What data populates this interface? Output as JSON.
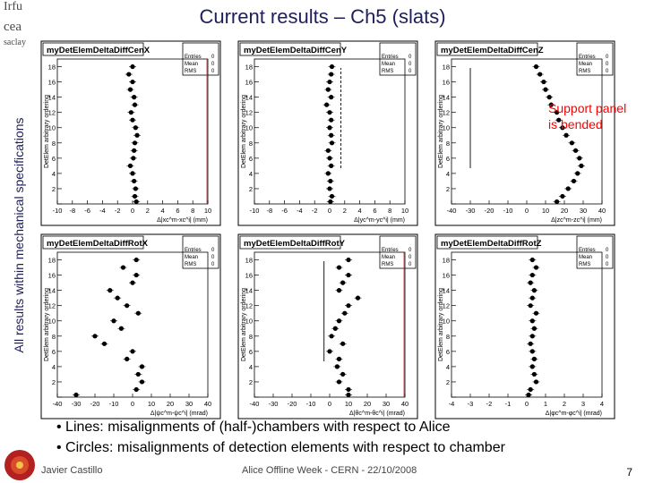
{
  "title": "Current results – Ch5 (slats)",
  "side_label": "All results within mechanical specifications",
  "logos": {
    "irfu": "Irfu",
    "cea": "cea",
    "saclay": "saclay"
  },
  "annotation": {
    "line1": "Support panel",
    "line2": "is bended"
  },
  "bullets": [
    "• Lines: misalignments of (half-)chambers with respect to Alice",
    "• Circles: misalignments of detection elements with respect to chamber"
  ],
  "footer": {
    "author": "Javier Castillo",
    "event": "Alice Offline Week - CERN - 22/10/2008",
    "page": "7"
  },
  "colors": {
    "title": "#1f1f5a",
    "annotation": "#ff0000",
    "marker": "#000000"
  },
  "chart_data": [
    {
      "type": "scatter",
      "title": "myDetElemDeltaDiffCenX",
      "xlabel": "Δ|xc^m-xc^i| (mm)",
      "ylabel": "DetElem arbitrary ordering",
      "xlim": [
        -10,
        10
      ],
      "ylim": [
        0,
        19
      ],
      "xticks": [
        -10,
        -8,
        -6,
        -4,
        -2,
        0,
        2,
        4,
        6,
        8,
        10
      ],
      "stats": {
        "entries": "0",
        "mean": "0",
        "rms": "0"
      },
      "points": [
        [
          0,
          18
        ],
        [
          -0.5,
          17
        ],
        [
          0,
          16
        ],
        [
          -0.3,
          15
        ],
        [
          0.2,
          14
        ],
        [
          0.3,
          13
        ],
        [
          -0.2,
          12
        ],
        [
          0,
          11
        ],
        [
          0.4,
          10
        ],
        [
          0.6,
          9
        ],
        [
          0.3,
          8
        ],
        [
          0.2,
          7
        ],
        [
          0.1,
          6
        ],
        [
          -0.3,
          5
        ],
        [
          0,
          4
        ],
        [
          0.2,
          3
        ],
        [
          0.4,
          2
        ],
        [
          0.3,
          1
        ],
        [
          0.5,
          0.3
        ]
      ]
    },
    {
      "type": "scatter",
      "title": "myDetElemDeltaDiffCenY",
      "xlabel": "Δ|yc^m-yc^i| (mm)",
      "ylabel": "DetElem arbitrary ordering",
      "xlim": [
        -10,
        10
      ],
      "ylim": [
        0,
        19
      ],
      "xticks": [
        -10,
        -8,
        -6,
        -4,
        -2,
        0,
        2,
        4,
        6,
        8,
        10
      ],
      "stats": {
        "entries": "0",
        "mean": "0",
        "rms": "0"
      },
      "points": [
        [
          0.3,
          18
        ],
        [
          0.2,
          17
        ],
        [
          0,
          16
        ],
        [
          -0.2,
          15
        ],
        [
          0.2,
          14
        ],
        [
          -0.4,
          13
        ],
        [
          0,
          12
        ],
        [
          0.2,
          11
        ],
        [
          0,
          10
        ],
        [
          0.2,
          9
        ],
        [
          0.3,
          8
        ],
        [
          -0.2,
          7
        ],
        [
          0,
          6
        ],
        [
          0.2,
          5
        ],
        [
          -0.2,
          4
        ],
        [
          0.1,
          3
        ],
        [
          0,
          2
        ],
        [
          0.3,
          1
        ],
        [
          0.1,
          0.3
        ]
      ]
    },
    {
      "type": "scatter",
      "title": "myDetElemDeltaDiffCenZ",
      "xlabel": "Δ|zc^m-zc^i| (mm)",
      "ylabel": "DetElem arbitrary ordering",
      "xlim": [
        -40,
        40
      ],
      "ylim": [
        0,
        19
      ],
      "xticks": [
        -40,
        -30,
        -20,
        -10,
        0,
        10,
        20,
        30,
        40
      ],
      "stats": {
        "entries": "0",
        "mean": "0",
        "rms": "0"
      },
      "points": [
        [
          5,
          18
        ],
        [
          7,
          17
        ],
        [
          9,
          16
        ],
        [
          10,
          15
        ],
        [
          12,
          14
        ],
        [
          13,
          13
        ],
        [
          16,
          12
        ],
        [
          17,
          11
        ],
        [
          19,
          10
        ],
        [
          21,
          9
        ],
        [
          24,
          8
        ],
        [
          26,
          7
        ],
        [
          28,
          6
        ],
        [
          29,
          5
        ],
        [
          27,
          4
        ],
        [
          25,
          3
        ],
        [
          22,
          2
        ],
        [
          19,
          1
        ],
        [
          16,
          0.3
        ]
      ]
    },
    {
      "type": "scatter",
      "title": "myDetElemDeltaDiffRotX",
      "xlabel": "Δ|ψc^m-ψc^i| (mrad)",
      "ylabel": "DetElem arbitrary ordering",
      "xlim": [
        -40,
        40
      ],
      "ylim": [
        0,
        19
      ],
      "xticks": [
        -40,
        -30,
        -20,
        -10,
        0,
        10,
        20,
        30,
        40
      ],
      "stats": {
        "entries": "0",
        "mean": "0",
        "rms": "0"
      },
      "points": [
        [
          2,
          18
        ],
        [
          -5,
          17
        ],
        [
          2,
          16
        ],
        [
          0,
          15
        ],
        [
          -12,
          14
        ],
        [
          -8,
          13
        ],
        [
          -3,
          12
        ],
        [
          3,
          11
        ],
        [
          -10,
          10
        ],
        [
          -6,
          9
        ],
        [
          -20,
          8
        ],
        [
          -15,
          7
        ],
        [
          0,
          6
        ],
        [
          -3,
          5
        ],
        [
          5,
          4
        ],
        [
          3,
          3
        ],
        [
          5,
          2
        ],
        [
          2,
          1
        ],
        [
          -30,
          0.3
        ]
      ]
    },
    {
      "type": "scatter",
      "title": "myDetElemDeltaDiffRotY",
      "xlabel": "Δ|θc^m-θc^i| (mrad)",
      "ylabel": "DetElem arbitrary ordering",
      "xlim": [
        -40,
        40
      ],
      "ylim": [
        0,
        19
      ],
      "xticks": [
        -40,
        -30,
        -20,
        -10,
        0,
        10,
        20,
        30,
        40
      ],
      "stats": {
        "entries": "0",
        "mean": "0",
        "rms": "0"
      },
      "points": [
        [
          10,
          18
        ],
        [
          5,
          17
        ],
        [
          10,
          16
        ],
        [
          7,
          15
        ],
        [
          5,
          14
        ],
        [
          15,
          13
        ],
        [
          10,
          12
        ],
        [
          8,
          11
        ],
        [
          5,
          10
        ],
        [
          3,
          9
        ],
        [
          1,
          8
        ],
        [
          7,
          7
        ],
        [
          0,
          6
        ],
        [
          5,
          5
        ],
        [
          4,
          4
        ],
        [
          7,
          3
        ],
        [
          5,
          2
        ],
        [
          10,
          1
        ],
        [
          10,
          0.3
        ]
      ]
    },
    {
      "type": "scatter",
      "title": "myDetElemDeltaDiffRotZ",
      "xlabel": "Δ|φc^m-φc^i| (mrad)",
      "ylabel": "DetElem arbitrary ordering",
      "xlim": [
        -4,
        4
      ],
      "ylim": [
        0,
        19
      ],
      "xticks": [
        -4,
        -3,
        -2,
        -1,
        0,
        1,
        2,
        3,
        4
      ],
      "stats": {
        "entries": "0",
        "mean": "0",
        "rms": "0"
      },
      "points": [
        [
          0.3,
          18
        ],
        [
          0.5,
          17
        ],
        [
          0.3,
          16
        ],
        [
          0.2,
          15
        ],
        [
          0.4,
          14
        ],
        [
          0.3,
          13
        ],
        [
          0.2,
          12
        ],
        [
          0.5,
          11
        ],
        [
          0.3,
          10
        ],
        [
          0.4,
          9
        ],
        [
          0.3,
          8
        ],
        [
          0.2,
          7
        ],
        [
          0.3,
          6
        ],
        [
          0.4,
          5
        ],
        [
          0.3,
          4
        ],
        [
          0.4,
          3
        ],
        [
          0.5,
          2
        ],
        [
          0.2,
          1
        ],
        [
          0.1,
          0.3
        ]
      ]
    }
  ]
}
